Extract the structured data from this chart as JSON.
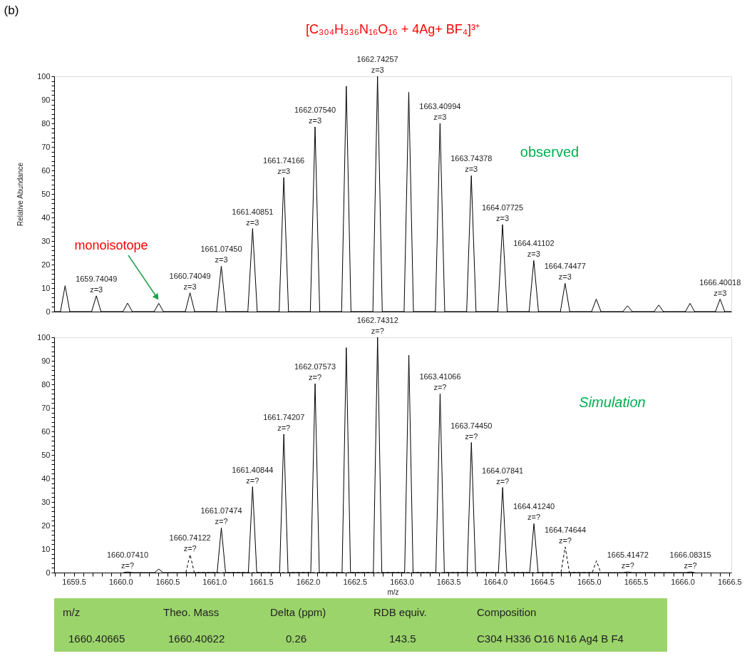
{
  "chart_data": [
    {
      "type": "line",
      "title": "[C₃₀₄H₃₃₆N₁₆O₁₆ + 4Ag+ BF₄]³⁺",
      "ylabel": "Relative Abundance",
      "xlim": [
        1659.29,
        1666.52
      ],
      "ylim": [
        0,
        100
      ],
      "yticks": [
        0,
        {
          "value": 2,
          "label": null
        },
        {
          "value": 4,
          "label": null
        },
        {
          "value": 6,
          "label": null
        },
        {
          "value": 8,
          "label": null
        },
        10,
        {
          "value": 12,
          "label": null
        },
        {
          "value": 14,
          "label": null
        },
        {
          "value": 16,
          "label": null
        },
        {
          "value": 18,
          "label": null
        },
        20,
        {
          "value": 22,
          "label": null
        },
        {
          "value": 24,
          "label": null
        },
        {
          "value": 26,
          "label": null
        },
        {
          "value": 28,
          "label": null
        },
        30,
        {
          "value": 32,
          "label": null
        },
        {
          "value": 34,
          "label": null
        },
        {
          "value": 36,
          "label": null
        },
        {
          "value": 38,
          "label": null
        },
        40,
        {
          "value": 42,
          "label": null
        },
        {
          "value": 44,
          "label": null
        },
        {
          "value": 46,
          "label": null
        },
        {
          "value": 48,
          "label": null
        },
        50,
        {
          "value": 52,
          "label": null
        },
        {
          "value": 54,
          "label": null
        },
        {
          "value": 56,
          "label": null
        },
        {
          "value": 58,
          "label": null
        },
        60,
        {
          "value": 62,
          "label": null
        },
        {
          "value": 64,
          "label": null
        },
        {
          "value": 66,
          "label": null
        },
        {
          "value": 68,
          "label": null
        },
        70,
        {
          "value": 72,
          "label": null
        },
        {
          "value": 74,
          "label": null
        },
        {
          "value": 76,
          "label": null
        },
        {
          "value": 78,
          "label": null
        },
        80,
        {
          "value": 82,
          "label": null
        },
        {
          "value": 84,
          "label": null
        },
        {
          "value": 86,
          "label": null
        },
        {
          "value": 88,
          "label": null
        },
        90,
        {
          "value": 92,
          "label": null
        },
        {
          "value": 94,
          "label": null
        },
        {
          "value": 96,
          "label": null
        },
        {
          "value": 98,
          "label": null
        },
        100
      ],
      "tick_labels": "y",
      "line_style": "solid",
      "series": [
        {
          "color": "#000000",
          "x": [
            1659.29,
            1659.357,
            1659.407,
            1659.457,
            1659.69,
            1659.74049,
            1659.79,
            1660.024,
            1660.074,
            1660.124,
            1660.357,
            1660.407,
            1660.457,
            1660.69,
            1660.74049,
            1660.79,
            1661.024,
            1661.0745,
            1661.124,
            1661.358,
            1661.40851,
            1661.458,
            1661.692,
            1661.74166,
            1661.792,
            1662.025,
            1662.0754,
            1662.125,
            1662.359,
            1662.409,
            1662.459,
            1662.693,
            1662.74257,
            1662.793,
            1663.026,
            1663.076,
            1663.126,
            1663.36,
            1663.40994,
            1663.46,
            1663.694,
            1663.74378,
            1663.794,
            1664.027,
            1664.07725,
            1664.127,
            1664.361,
            1664.41102,
            1664.461,
            1664.695,
            1664.74477,
            1664.795,
            1665.028,
            1665.078,
            1665.128,
            1665.362,
            1665.412,
            1665.462,
            1665.695,
            1665.745,
            1665.795,
            1666.029,
            1666.079,
            1666.129,
            1666.35,
            1666.40018,
            1666.45,
            1666.52
          ],
          "values": [
            0,
            0,
            11,
            0,
            0,
            6.7,
            0,
            0,
            3.6,
            0,
            0,
            3.5,
            0,
            0,
            8,
            0,
            0,
            19.3,
            0,
            0,
            35.3,
            0,
            0,
            57,
            0,
            0,
            78.5,
            0,
            0,
            95.8,
            0,
            0,
            100,
            0,
            0,
            93.2,
            0,
            0,
            80,
            0,
            0,
            57.8,
            0,
            0,
            37,
            0,
            0,
            21.7,
            0,
            0,
            12,
            0,
            0,
            5.3,
            0,
            0,
            2.5,
            0,
            0,
            2.8,
            0,
            0,
            3.5,
            0,
            0,
            5.3,
            0,
            0
          ]
        }
      ],
      "annotations": [
        "(b)",
        "observed",
        "monoisotope",
        {
          "text": "1659.74049\nz=3",
          "x": 1659.74049,
          "y": 6.7
        },
        {
          "text": "1660.74049\nz=3",
          "x": 1660.74049,
          "y": 8
        },
        {
          "text": "1661.07450\nz=3",
          "x": 1661.0745,
          "y": 19.3
        },
        {
          "text": "1661.40851\nz=3",
          "x": 1661.40851,
          "y": 35.3
        },
        {
          "text": "1661.74166\nz=3",
          "x": 1661.74166,
          "y": 57
        },
        {
          "text": "1662.07540\nz=3",
          "x": 1662.0754,
          "y": 78.5
        },
        {
          "text": "1662.74257\nz=3",
          "x": 1662.74257,
          "y": 100
        },
        {
          "text": "1663.40994\nz=3",
          "x": 1663.40994,
          "y": 80
        },
        {
          "text": "1663.74378\nz=3",
          "x": 1663.74378,
          "y": 57.8
        },
        {
          "text": "1664.07725\nz=3",
          "x": 1664.07725,
          "y": 37
        },
        {
          "text": "1664.41102\nz=3",
          "x": 1664.41102,
          "y": 21.7
        },
        {
          "text": "1664.74477\nz=3",
          "x": 1664.74477,
          "y": 12
        },
        {
          "text": "1666.40018\nz=3",
          "x": 1666.40018,
          "y": 5.3
        }
      ]
    },
    {
      "type": "line",
      "xlabel": "m/z",
      "xlim": [
        1659.29,
        1666.52
      ],
      "ylim": [
        0,
        100
      ],
      "xticks": [
        {
          "value": 1659.3,
          "label": null
        },
        {
          "value": 1659.4,
          "label": null
        },
        {
          "value": 1659.5,
          "label": "1659.5"
        },
        {
          "value": 1659.6,
          "label": null
        },
        {
          "value": 1659.7,
          "label": null
        },
        {
          "value": 1659.8,
          "label": null
        },
        {
          "value": 1659.9,
          "label": null
        },
        {
          "value": 1660,
          "label": "1660.0"
        },
        {
          "value": 1660.1,
          "label": null
        },
        {
          "value": 1660.2,
          "label": null
        },
        {
          "value": 1660.3,
          "label": null
        },
        {
          "value": 1660.4,
          "label": null
        },
        {
          "value": 1660.5,
          "label": "1660.5"
        },
        {
          "value": 1660.6,
          "label": null
        },
        {
          "value": 1660.7,
          "label": null
        },
        {
          "value": 1660.8,
          "label": null
        },
        {
          "value": 1660.9,
          "label": null
        },
        {
          "value": 1661,
          "label": "1661.0"
        },
        {
          "value": 1661.1,
          "label": null
        },
        {
          "value": 1661.2,
          "label": null
        },
        {
          "value": 1661.3,
          "label": null
        },
        {
          "value": 1661.4,
          "label": null
        },
        {
          "value": 1661.5,
          "label": "1661.5"
        },
        {
          "value": 1661.6,
          "label": null
        },
        {
          "value": 1661.7,
          "label": null
        },
        {
          "value": 1661.8,
          "label": null
        },
        {
          "value": 1661.9,
          "label": null
        },
        {
          "value": 1662,
          "label": "1662.0"
        },
        {
          "value": 1662.1,
          "label": null
        },
        {
          "value": 1662.2,
          "label": null
        },
        {
          "value": 1662.3,
          "label": null
        },
        {
          "value": 1662.4,
          "label": null
        },
        {
          "value": 1662.5,
          "label": "1662.5"
        },
        {
          "value": 1662.6,
          "label": null
        },
        {
          "value": 1662.7,
          "label": null
        },
        {
          "value": 1662.8,
          "label": null
        },
        {
          "value": 1662.9,
          "label": null
        },
        {
          "value": 1663,
          "label": "1663.0"
        },
        {
          "value": 1663.1,
          "label": null
        },
        {
          "value": 1663.2,
          "label": null
        },
        {
          "value": 1663.3,
          "label": null
        },
        {
          "value": 1663.4,
          "label": null
        },
        {
          "value": 1663.5,
          "label": "1663.5"
        },
        {
          "value": 1663.6,
          "label": null
        },
        {
          "value": 1663.7,
          "label": null
        },
        {
          "value": 1663.8,
          "label": null
        },
        {
          "value": 1663.9,
          "label": null
        },
        {
          "value": 1664,
          "label": "1664.0"
        },
        {
          "value": 1664.1,
          "label": null
        },
        {
          "value": 1664.2,
          "label": null
        },
        {
          "value": 1664.3,
          "label": null
        },
        {
          "value": 1664.4,
          "label": null
        },
        {
          "value": 1664.5,
          "label": "1664.5"
        },
        {
          "value": 1664.6,
          "label": null
        },
        {
          "value": 1664.7,
          "label": null
        },
        {
          "value": 1664.8,
          "label": null
        },
        {
          "value": 1664.9,
          "label": null
        },
        {
          "value": 1665,
          "label": "1665.0"
        },
        {
          "value": 1665.1,
          "label": null
        },
        {
          "value": 1665.2,
          "label": null
        },
        {
          "value": 1665.3,
          "label": null
        },
        {
          "value": 1665.4,
          "label": null
        },
        {
          "value": 1665.5,
          "label": "1665.5"
        },
        {
          "value": 1665.6,
          "label": null
        },
        {
          "value": 1665.7,
          "label": null
        },
        {
          "value": 1665.8,
          "label": null
        },
        {
          "value": 1665.9,
          "label": null
        },
        {
          "value": 1666,
          "label": "1666.0"
        },
        {
          "value": 1666.1,
          "label": null
        },
        {
          "value": 1666.2,
          "label": null
        },
        {
          "value": 1666.3,
          "label": null
        },
        {
          "value": 1666.4,
          "label": null
        },
        {
          "value": 1666.5,
          "label": "1666.5"
        }
      ],
      "yticks": [
        0,
        {
          "value": 2,
          "label": null
        },
        {
          "value": 4,
          "label": null
        },
        {
          "value": 6,
          "label": null
        },
        {
          "value": 8,
          "label": null
        },
        10,
        {
          "value": 12,
          "label": null
        },
        {
          "value": 14,
          "label": null
        },
        {
          "value": 16,
          "label": null
        },
        {
          "value": 18,
          "label": null
        },
        20,
        {
          "value": 22,
          "label": null
        },
        {
          "value": 24,
          "label": null
        },
        {
          "value": 26,
          "label": null
        },
        {
          "value": 28,
          "label": null
        },
        30,
        {
          "value": 32,
          "label": null
        },
        {
          "value": 34,
          "label": null
        },
        {
          "value": 36,
          "label": null
        },
        {
          "value": 38,
          "label": null
        },
        40,
        {
          "value": 42,
          "label": null
        },
        {
          "value": 44,
          "label": null
        },
        {
          "value": 46,
          "label": null
        },
        {
          "value": 48,
          "label": null
        },
        50,
        {
          "value": 52,
          "label": null
        },
        {
          "value": 54,
          "label": null
        },
        {
          "value": 56,
          "label": null
        },
        {
          "value": 58,
          "label": null
        },
        60,
        {
          "value": 62,
          "label": null
        },
        {
          "value": 64,
          "label": null
        },
        {
          "value": 66,
          "label": null
        },
        {
          "value": 68,
          "label": null
        },
        70,
        {
          "value": 72,
          "label": null
        },
        {
          "value": 74,
          "label": null
        },
        {
          "value": 76,
          "label": null
        },
        {
          "value": 78,
          "label": null
        },
        80,
        {
          "value": 82,
          "label": null
        },
        {
          "value": 84,
          "label": null
        },
        {
          "value": 86,
          "label": null
        },
        {
          "value": 88,
          "label": null
        },
        90,
        {
          "value": 92,
          "label": null
        },
        {
          "value": 94,
          "label": null
        },
        {
          "value": 96,
          "label": null
        },
        {
          "value": 98,
          "label": null
        },
        100
      ],
      "line_style": "solid",
      "series": [
        {
          "color": "#000000",
          "x": [
            1660.029,
            1660.0741,
            1660.119,
            1660.362,
            1660.407,
            1660.452,
            1661.03,
            1661.07474,
            1661.12,
            1661.363,
            1661.40844,
            1661.453,
            1661.697,
            1661.74207,
            1661.787,
            1662.03,
            1662.07573,
            1662.121,
            1662.364,
            1662.409,
            1662.454,
            1662.698,
            1662.74312,
            1662.788,
            1663.032,
            1663.077,
            1663.122,
            1663.365,
            1663.41066,
            1663.456,
            1663.699,
            1663.7445,
            1663.79,
            1664.033,
            1664.07841,
            1664.123,
            1664.367,
            1664.4124,
            1664.457,
            1665.37,
            1665.41472,
            1665.46,
            1666.038,
            1666.08315,
            1666.128
          ],
          "values": [
            0,
            0.3,
            0,
            0,
            1.5,
            0,
            0,
            19,
            0,
            0,
            36.5,
            0,
            0,
            58.8,
            0,
            0,
            80.3,
            0,
            0,
            95.6,
            0,
            0,
            100,
            0,
            0,
            92.4,
            0,
            0,
            76,
            0,
            0,
            55.3,
            0,
            0,
            36.2,
            0,
            0,
            20.8,
            0,
            0,
            0.3,
            0,
            0,
            0.3,
            0
          ]
        },
        {
          "color": "#000000",
          "line_style": "dashed",
          "x": [
            1660.696,
            1660.74122,
            1660.786,
            1664.701,
            1664.74644,
            1664.791,
            1665.035,
            1665.08,
            1665.125
          ],
          "values": [
            0,
            7.7,
            0,
            0,
            10.9,
            0,
            0,
            5,
            0
          ]
        }
      ],
      "annotations": [
        "Simulation",
        {
          "text": "1660.07410\nz=?",
          "x": 1660.0741,
          "y": 0.3
        },
        {
          "text": "1660.74122\nz=?",
          "x": 1660.74122,
          "y": 7.7
        },
        {
          "text": "1661.07474\nz=?",
          "x": 1661.07474,
          "y": 19
        },
        {
          "text": "1661.40844\nz=?",
          "x": 1661.40844,
          "y": 36.5
        },
        {
          "text": "1661.74207\nz=?",
          "x": 1661.74207,
          "y": 58.8
        },
        {
          "text": "1662.07573\nz=?",
          "x": 1662.07573,
          "y": 80.3
        },
        {
          "text": "1662.74312\nz=?",
          "x": 1662.74312,
          "y": 100
        },
        {
          "text": "1663.41066\nz=?",
          "x": 1663.41066,
          "y": 76
        },
        {
          "text": "1663.74450\nz=?",
          "x": 1663.7445,
          "y": 55.3
        },
        {
          "text": "1664.07841\nz=?",
          "x": 1664.07841,
          "y": 36.2
        },
        {
          "text": "1664.41240\nz=?",
          "x": 1664.4124,
          "y": 20.8
        },
        {
          "text": "1664.74644\nz=?",
          "x": 1664.74644,
          "y": 10.9
        },
        {
          "text": "1665.41472\nz=?",
          "x": 1665.41472,
          "y": 0.3
        },
        {
          "text": "1666.08315\nz=?",
          "x": 1666.08315,
          "y": 0.3
        }
      ]
    },
    {
      "type": "other",
      "annotations": [
        "m/z",
        "Theo. Mass",
        "Delta (ppm)",
        "RDB equiv.",
        "Composition",
        "1660.40665",
        "1660.40622",
        "0.26",
        "143.5",
        "C304 H336 O16 N16 Ag4 B F4"
      ]
    }
  ]
}
